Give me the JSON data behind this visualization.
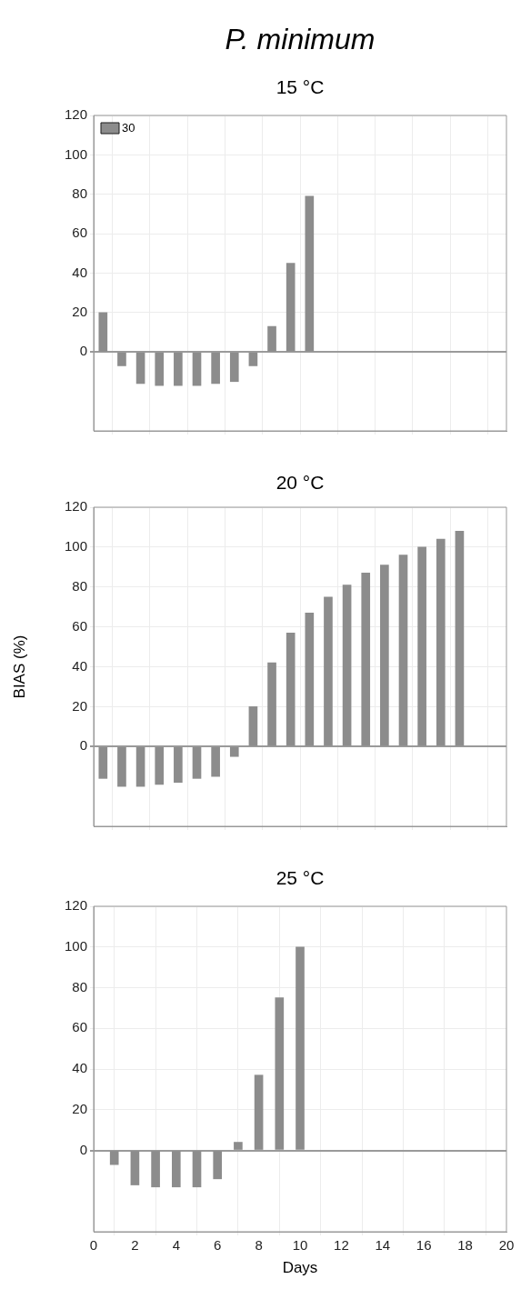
{
  "chart_data": [
    {
      "type": "bar",
      "title": "P. minimum",
      "subtitle": "15 °C",
      "categories": [
        null,
        null,
        null,
        null,
        null,
        null,
        null,
        null,
        null,
        null,
        null,
        null,
        null,
        null,
        null,
        null,
        null,
        null,
        null,
        null,
        null,
        null
      ],
      "series": [
        {
          "name": "30",
          "color": "#8c8c8c",
          "values": [
            20,
            -7,
            -16,
            -17,
            -17,
            -17,
            -16,
            -15,
            -7,
            13,
            45,
            79,
            null,
            null,
            null,
            null,
            null,
            null,
            null,
            null,
            null,
            null
          ]
        }
      ],
      "ylim": [
        -40,
        120
      ],
      "yticks": [
        0,
        20,
        40,
        60,
        80,
        100,
        120
      ],
      "tick_labels": "y",
      "grid": true,
      "legend": "top left"
    },
    {
      "type": "bar",
      "subtitle": "20 °C",
      "ylabel": "BIAS (%)",
      "categories": [
        null,
        null,
        null,
        null,
        null,
        null,
        null,
        null,
        null,
        null,
        null,
        null,
        null,
        null,
        null,
        null,
        null,
        null,
        null,
        null,
        null,
        null
      ],
      "series": [
        {
          "color": "#8c8c8c",
          "values": [
            -16,
            -20,
            -20,
            -19,
            -18,
            -16,
            -15,
            -5,
            20,
            42,
            57,
            67,
            75,
            81,
            87,
            91,
            96,
            100,
            104,
            108,
            null,
            null
          ]
        }
      ],
      "ylim": [
        -40,
        120
      ],
      "yticks": [
        0,
        20,
        40,
        60,
        80,
        100,
        120
      ],
      "tick_labels": "y",
      "grid": true
    },
    {
      "type": "bar",
      "subtitle": "25 °C",
      "xlabel": "Days",
      "x": [
        1,
        2,
        3,
        4,
        5,
        6,
        7,
        8,
        9,
        10
      ],
      "series": [
        {
          "color": "#8c8c8c",
          "values": [
            -7,
            -17,
            -18,
            -18,
            -18,
            -14,
            4,
            37,
            75,
            100
          ]
        }
      ],
      "xlim": [
        0,
        20
      ],
      "xticks": [
        0,
        2,
        4,
        6,
        8,
        10,
        12,
        14,
        16,
        18,
        20
      ],
      "ylim": [
        -40,
        120
      ],
      "yticks": [
        0,
        20,
        40,
        60,
        80,
        100,
        120
      ],
      "grid": true
    }
  ]
}
